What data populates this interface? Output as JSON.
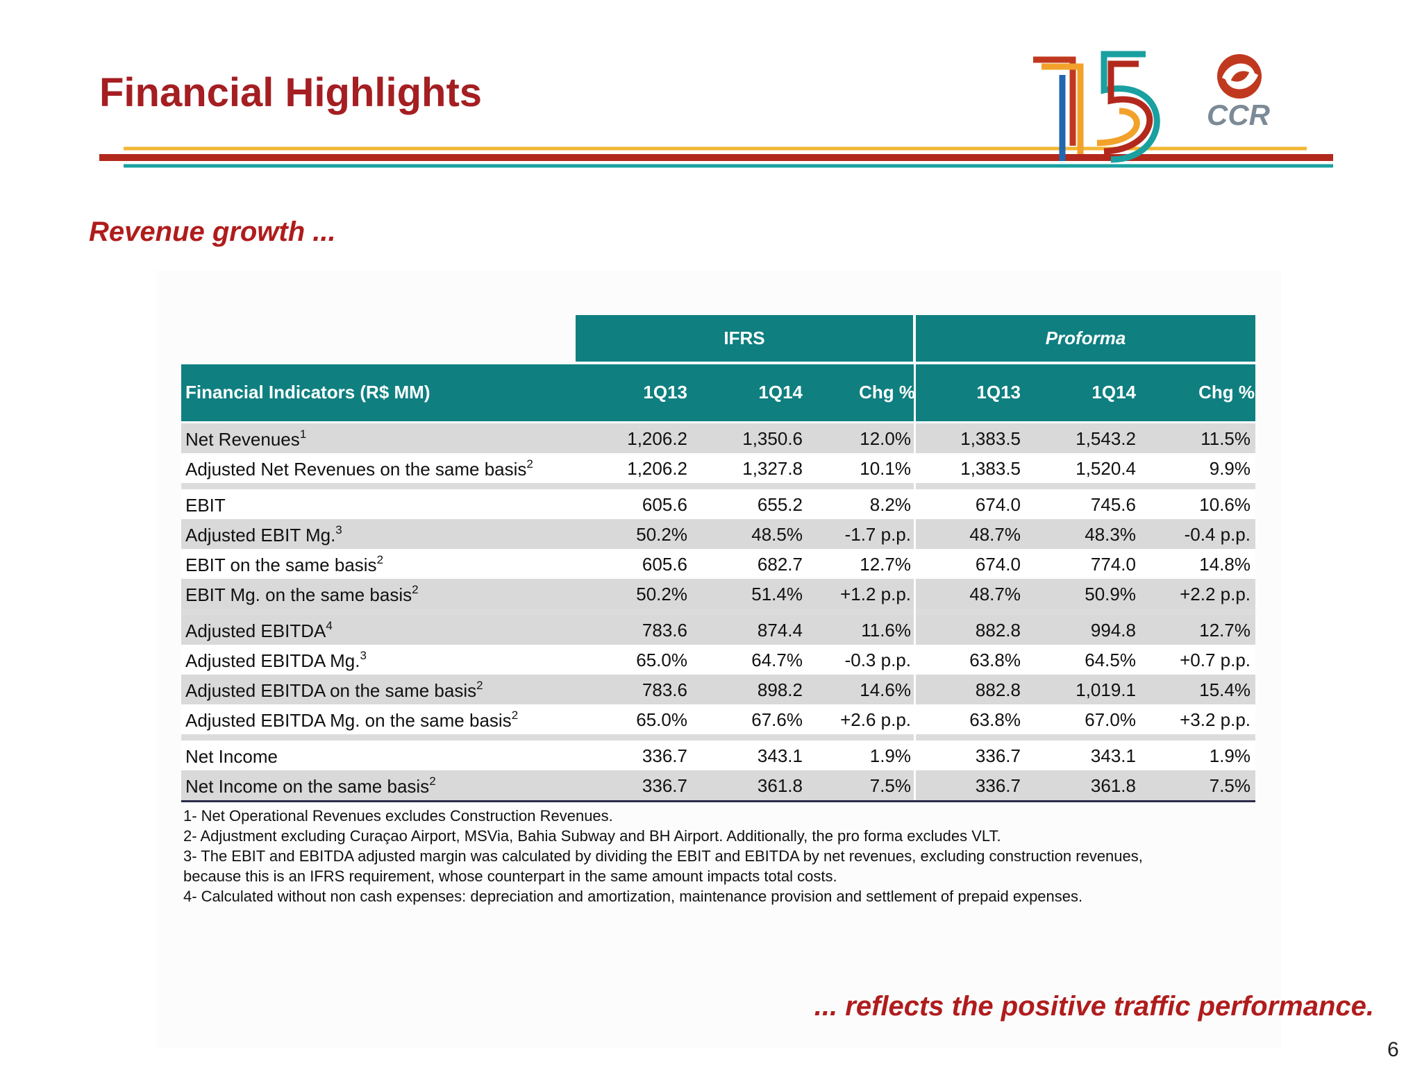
{
  "header": {
    "title": "Financial Highlights",
    "logo_text": "CCR"
  },
  "subtitle": "Revenue growth ...",
  "table": {
    "groups": [
      "IFRS",
      "Proforma"
    ],
    "columns": [
      "Financial Indicators (R$ MM)",
      "1Q13",
      "1Q14",
      "Chg %",
      "1Q13",
      "1Q14",
      "Chg %"
    ],
    "sections": [
      [
        {
          "label": "Net Revenues",
          "note": "1",
          "values": [
            "1,206.2",
            "1,350.6",
            "12.0%",
            "1,383.5",
            "1,543.2",
            "11.5%"
          ]
        },
        {
          "label": "Adjusted Net Revenues on the same basis",
          "note": "2",
          "values": [
            "1,206.2",
            "1,327.8",
            "10.1%",
            "1,383.5",
            "1,520.4",
            "9.9%"
          ]
        }
      ],
      [
        {
          "label": "EBIT",
          "values": [
            "605.6",
            "655.2",
            "8.2%",
            "674.0",
            "745.6",
            "10.6%"
          ]
        },
        {
          "label": "Adjusted EBIT Mg.",
          "note": "3",
          "values": [
            "50.2%",
            "48.5%",
            "-1.7 p.p.",
            "48.7%",
            "48.3%",
            "-0.4 p.p."
          ]
        },
        {
          "label": "EBIT on the same basis",
          "note": "2",
          "values": [
            "605.6",
            "682.7",
            "12.7%",
            "674.0",
            "774.0",
            "14.8%"
          ]
        },
        {
          "label": "EBIT Mg. on the same basis",
          "note": "2",
          "values": [
            "50.2%",
            "51.4%",
            "+1.2 p.p.",
            "48.7%",
            "50.9%",
            "+2.2 p.p."
          ]
        }
      ],
      [
        {
          "label": "Adjusted EBITDA",
          "note": "4",
          "values": [
            "783.6",
            "874.4",
            "11.6%",
            "882.8",
            "994.8",
            "12.7%"
          ]
        },
        {
          "label": "Adjusted EBITDA Mg.",
          "note": "3",
          "values": [
            "65.0%",
            "64.7%",
            "-0.3 p.p.",
            "63.8%",
            "64.5%",
            "+0.7 p.p."
          ]
        },
        {
          "label": "Adjusted EBITDA on the same basis",
          "note": "2",
          "values": [
            "783.6",
            "898.2",
            "14.6%",
            "882.8",
            "1,019.1",
            "15.4%"
          ]
        },
        {
          "label": "Adjusted EBITDA Mg. on the same basis",
          "note": "2",
          "values": [
            "65.0%",
            "67.6%",
            "+2.6 p.p.",
            "63.8%",
            "67.0%",
            "+3.2 p.p."
          ]
        }
      ],
      [
        {
          "label": "Net Income",
          "values": [
            "336.7",
            "343.1",
            "1.9%",
            "336.7",
            "343.1",
            "1.9%"
          ]
        },
        {
          "label": "Net Income on the same basis",
          "note": "2",
          "values": [
            "336.7",
            "361.8",
            "7.5%",
            "336.7",
            "361.8",
            "7.5%"
          ]
        }
      ]
    ]
  },
  "footnotes": [
    "1- Net Operational Revenues excludes Construction Revenues.",
    "2- Adjustment excluding Curaçao Airport, MSVia, Bahia Subway and BH Airport. Additionally, the pro forma excludes VLT.",
    "3- The EBIT and EBITDA adjusted margin was calculated by dividing the EBIT and EBITDA by net revenues, excluding construction revenues, because this is an IFRS requirement, whose counterpart in the same amount impacts total costs.",
    "4- Calculated without non cash expenses: depreciation and amortization, maintenance provision and settlement of prepaid expenses."
  ],
  "closing": "... reflects the positive traffic performance.",
  "page_number": "6"
}
